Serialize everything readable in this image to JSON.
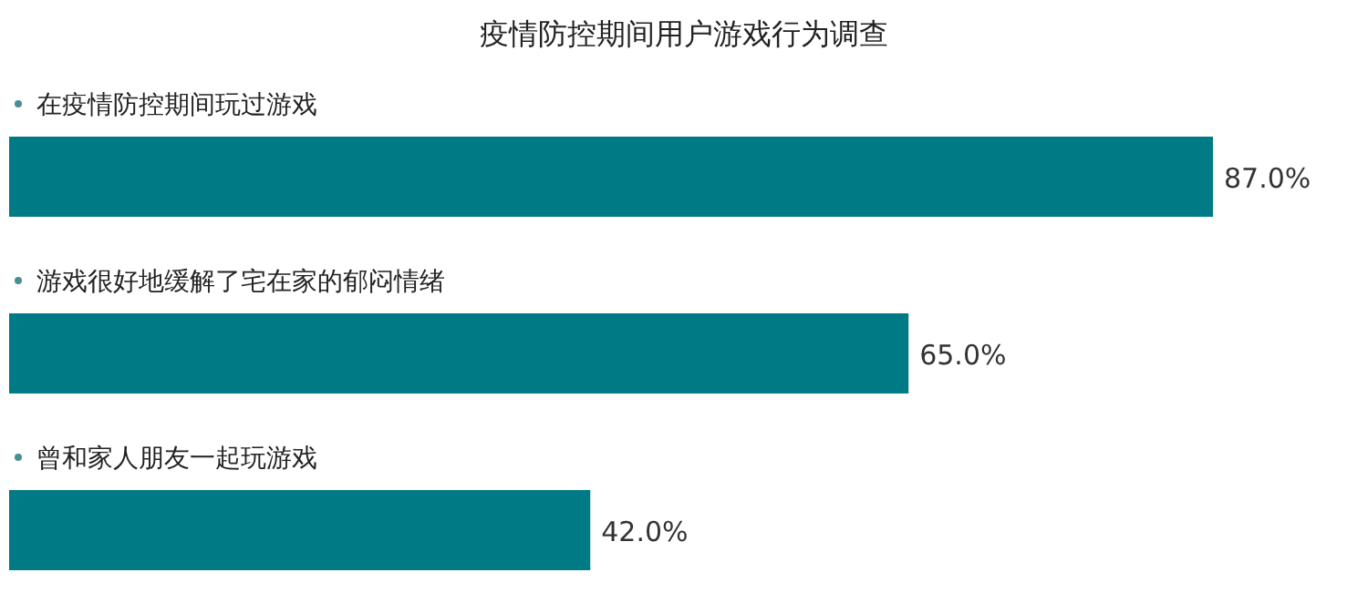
{
  "chart_data": {
    "type": "bar",
    "orientation": "horizontal",
    "title": "疫情防控期间用户游戏行为调查",
    "categories": [
      "在疫情防控期间玩过游戏",
      "游戏很好地缓解了宅在家的郁闷情绪",
      "曾和家人朋友一起玩游戏"
    ],
    "values": [
      87,
      65,
      42
    ],
    "value_labels": [
      "87.0%",
      "65.0%",
      "42.0%"
    ],
    "color": "#007b85"
  }
}
